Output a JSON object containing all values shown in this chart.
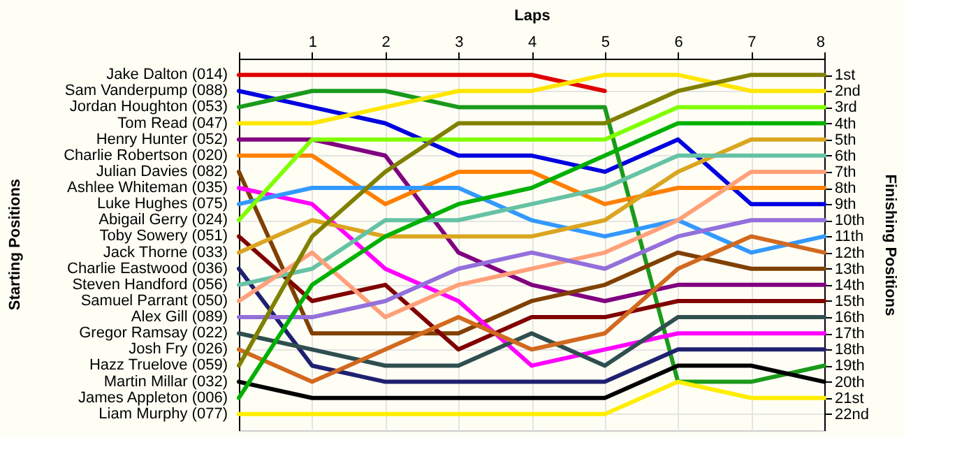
{
  "chart_data": {
    "type": "line",
    "xlabel": "Laps",
    "annotations": [
      "Starting Positions"
    ],
    "y2label": "Finishing Positions",
    "x": [
      0,
      1,
      2,
      3,
      4,
      5,
      6,
      7,
      8
    ],
    "xlim": [
      0,
      8
    ],
    "xticks": [
      {
        "value": 0,
        "label": null
      },
      1,
      2,
      3,
      4,
      5,
      6,
      7,
      8
    ],
    "y2lim": [
      23,
      0
    ],
    "y2ticks": [
      {
        "value": 1,
        "label": "1st"
      },
      {
        "value": 2,
        "label": "2nd"
      },
      {
        "value": 3,
        "label": "3rd"
      },
      {
        "value": 4,
        "label": "4th"
      },
      {
        "value": 5,
        "label": "5th"
      },
      {
        "value": 6,
        "label": "6th"
      },
      {
        "value": 7,
        "label": "7th"
      },
      {
        "value": 8,
        "label": "8th"
      },
      {
        "value": 9,
        "label": "9th"
      },
      {
        "value": 10,
        "label": "10th"
      },
      {
        "value": 11,
        "label": "11th"
      },
      {
        "value": 12,
        "label": "12th"
      },
      {
        "value": 13,
        "label": "13th"
      },
      {
        "value": 14,
        "label": "14th"
      },
      {
        "value": 15,
        "label": "15th"
      },
      {
        "value": 16,
        "label": "16th"
      },
      {
        "value": 17,
        "label": "17th"
      },
      {
        "value": 18,
        "label": "18th"
      },
      {
        "value": 19,
        "label": "19th"
      },
      {
        "value": 20,
        "label": "20th"
      },
      {
        "value": 21,
        "label": "21st"
      },
      {
        "value": 22,
        "label": "22nd"
      }
    ],
    "grid": true,
    "legend": false,
    "line_style": "solid",
    "series": [
      {
        "name": "Jake Dalton (014)",
        "axis": "y2",
        "color": "#e00000",
        "values": [
          1,
          1,
          1,
          1,
          1,
          2,
          null,
          null,
          null
        ]
      },
      {
        "name": "Sam Vanderpump (088)",
        "axis": "y2",
        "color": "#0000e0",
        "values": [
          2,
          3,
          4,
          6,
          6,
          7,
          5,
          9,
          9
        ]
      },
      {
        "name": "Jordan Houghton (053)",
        "axis": "y2",
        "color": "#1a9a1a",
        "values": [
          3,
          2,
          2,
          3,
          3,
          3,
          20,
          20,
          19
        ]
      },
      {
        "name": "Tom Read (047)",
        "axis": "y2",
        "color": "#ffe600",
        "values": [
          4,
          4,
          3,
          2,
          2,
          1,
          1,
          2,
          2
        ]
      },
      {
        "name": "Henry Hunter (052)",
        "axis": "y2",
        "color": "#800080",
        "values": [
          5,
          5,
          6,
          12,
          14,
          15,
          14,
          14,
          14
        ]
      },
      {
        "name": "Charlie Robertson (020)",
        "axis": "y2",
        "color": "#ff8000",
        "values": [
          6,
          6,
          9,
          7,
          7,
          9,
          8,
          8,
          8
        ]
      },
      {
        "name": "Julian Davies (082)",
        "axis": "y2",
        "color": "#804000",
        "values": [
          7,
          17,
          17,
          17,
          15,
          14,
          12,
          13,
          13
        ]
      },
      {
        "name": "Ashlee Whiteman (035)",
        "axis": "y2",
        "color": "#ff00ff",
        "values": [
          8,
          9,
          13,
          15,
          19,
          18,
          17,
          17,
          17
        ]
      },
      {
        "name": "Luke Hughes (075)",
        "axis": "y2",
        "color": "#3399ff",
        "values": [
          9,
          8,
          8,
          8,
          10,
          11,
          10,
          12,
          11
        ]
      },
      {
        "name": "Abigail Gerry (024)",
        "axis": "y2",
        "color": "#80ff00",
        "values": [
          10,
          5,
          5,
          5,
          5,
          5,
          3,
          3,
          3
        ]
      },
      {
        "name": "Toby Sowery (051)",
        "axis": "y2",
        "color": "#800000",
        "values": [
          11,
          15,
          14,
          18,
          16,
          16,
          15,
          15,
          15
        ]
      },
      {
        "name": "Jack Thorne (033)",
        "axis": "y2",
        "color": "#daa520",
        "values": [
          12,
          10,
          11,
          11,
          11,
          10,
          7,
          5,
          5
        ]
      },
      {
        "name": "Charlie Eastwood (036)",
        "axis": "y2",
        "color": "#202070",
        "values": [
          13,
          19,
          20,
          20,
          20,
          20,
          18,
          18,
          18
        ]
      },
      {
        "name": "Steven Handford (056)",
        "axis": "y2",
        "color": "#66c2a5",
        "values": [
          14,
          13,
          10,
          10,
          9,
          8,
          6,
          6,
          6
        ]
      },
      {
        "name": "Samuel Parrant (050)",
        "axis": "y2",
        "color": "#ffa07a",
        "values": [
          15,
          12,
          16,
          14,
          13,
          12,
          10,
          7,
          7
        ]
      },
      {
        "name": "Alex Gill (089)",
        "axis": "y2",
        "color": "#9370db",
        "values": [
          16,
          16,
          15,
          13,
          12,
          13,
          11,
          10,
          10
        ]
      },
      {
        "name": "Gregor Ramsay (022)",
        "axis": "y2",
        "color": "#2f4f4f",
        "values": [
          17,
          18,
          19,
          19,
          17,
          19,
          16,
          16,
          16
        ]
      },
      {
        "name": "Josh Fry (026)",
        "axis": "y2",
        "color": "#d2691e",
        "values": [
          18,
          20,
          18,
          16,
          18,
          17,
          13,
          11,
          12
        ]
      },
      {
        "name": "Hazz Truelove (059)",
        "axis": "y2",
        "color": "#808000",
        "values": [
          19,
          11,
          7,
          4,
          4,
          4,
          2,
          1,
          1
        ]
      },
      {
        "name": "Martin Millar (032)",
        "axis": "y2",
        "color": "#000000",
        "values": [
          20,
          21,
          21,
          21,
          21,
          21,
          19,
          19,
          20
        ]
      },
      {
        "name": "James Appleton (006)",
        "axis": "y2",
        "color": "#00b000",
        "values": [
          21,
          14,
          11,
          9,
          8,
          6,
          4,
          4,
          4
        ]
      },
      {
        "name": "Liam Murphy (077)",
        "axis": "y2",
        "color": "#ffee00",
        "values": [
          22,
          22,
          22,
          22,
          22,
          22,
          20,
          21,
          21
        ]
      }
    ]
  }
}
